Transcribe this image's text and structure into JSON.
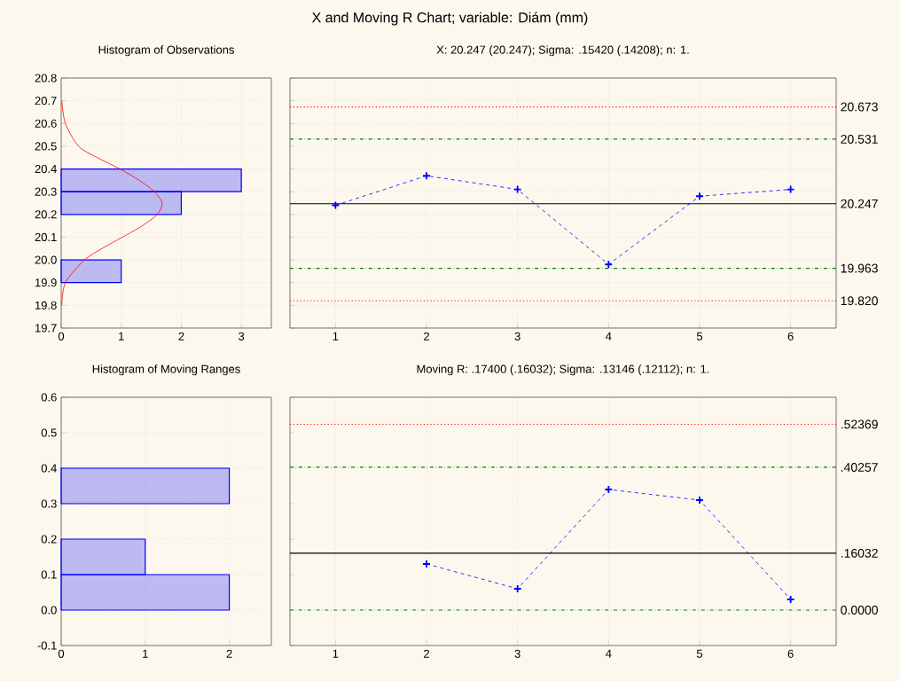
{
  "chart_data": [
    {
      "type": "other",
      "title": "X and Moving R Chart; variable:  Diám (mm)"
    },
    {
      "type": "histogram",
      "orientation": "horizontal",
      "title": "Histogram of Observations",
      "grid": true,
      "series": [
        {
          "type": "histogram",
          "color": "#0000ff",
          "bins": [
            19.9,
            20.0,
            20.1,
            20.2,
            20.3,
            20.4
          ],
          "values": [
            1,
            0,
            0,
            2,
            3
          ]
        },
        {
          "type": "line",
          "color": "#ff0000",
          "x": [
            19.8,
            19.9,
            20.0,
            20.05,
            20.1,
            20.15,
            20.2,
            20.25,
            20.3,
            20.35,
            20.4,
            20.45,
            20.5,
            20.6,
            20.7
          ],
          "values": [
            0.01,
            0.07,
            0.39,
            0.68,
            1.02,
            1.35,
            1.6,
            1.68,
            1.55,
            1.3,
            0.98,
            0.6,
            0.29,
            0.07,
            0.01
          ]
        }
      ],
      "xlim": [
        0,
        3.5
      ],
      "xticks": [
        0,
        1,
        2,
        3
      ],
      "ylim": [
        19.7,
        20.8
      ],
      "yticks": [
        19.7,
        19.8,
        19.9,
        {
          "value": 20.0,
          "label": "20.0"
        },
        20.1,
        20.2,
        20.3,
        20.4,
        20.5,
        20.6,
        20.7,
        20.8
      ]
    },
    {
      "type": "line",
      "title": "X: 20.247 (20.247); Sigma: .15420 (.14208); n: 1.",
      "grid": true,
      "marker": "cross",
      "line_style": "dashed",
      "color": "#0000ff",
      "x": [
        1,
        2,
        3,
        4,
        5,
        6
      ],
      "values": [
        20.24,
        20.37,
        20.31,
        19.98,
        20.28,
        20.31
      ],
      "xlim": [
        0.5,
        6.5
      ],
      "xticks": [
        1,
        2,
        3,
        4,
        5,
        6
      ],
      "ylim": [
        19.7,
        20.8
      ],
      "yticks": [
        {
          "value": 19.7,
          "label": null
        },
        {
          "value": 19.8,
          "label": null
        },
        {
          "value": 19.9,
          "label": null
        },
        {
          "value": 20.0,
          "label": null
        },
        {
          "value": 20.1,
          "label": null
        },
        {
          "value": 20.2,
          "label": null
        },
        {
          "value": 20.3,
          "label": null
        },
        {
          "value": 20.4,
          "label": null
        },
        {
          "value": 20.5,
          "label": null
        },
        {
          "value": 20.6,
          "label": null
        },
        {
          "value": 20.7,
          "label": null
        },
        {
          "value": 20.8,
          "label": null
        }
      ],
      "tick_labels": "x",
      "ref_lines": [
        {
          "axis": "y",
          "value": 20.673,
          "label": "20.673",
          "color": "#ff0000",
          "line_style": "dotted"
        },
        {
          "axis": "y",
          "value": 20.531,
          "label": "20.531",
          "color": "#008000",
          "line_style": "dashdot"
        },
        {
          "axis": "y",
          "value": 20.247,
          "label": "20.247",
          "color": "#000000",
          "line_style": "solid"
        },
        {
          "axis": "y",
          "value": 19.963,
          "label": "19.963",
          "color": "#008000",
          "line_style": "dashdot"
        },
        {
          "axis": "y",
          "value": 19.82,
          "label": "19.820",
          "color": "#ff0000",
          "line_style": "dotted"
        }
      ]
    },
    {
      "type": "histogram",
      "orientation": "horizontal",
      "title": "Histogram of Moving Ranges",
      "grid": true,
      "color": "#0000ff",
      "bins": [
        0,
        0.1,
        0.2,
        0.3,
        0.4
      ],
      "values": [
        2,
        1,
        0,
        2
      ],
      "xlim": [
        0,
        2.5
      ],
      "xticks": [
        0,
        1,
        2
      ],
      "ylim": [
        -0.1,
        0.6
      ],
      "yticks": [
        -0.1,
        {
          "value": 0,
          "label": "0.0"
        },
        0.1,
        0.2,
        0.3,
        0.4,
        0.5,
        0.6
      ]
    },
    {
      "type": "line",
      "title": "Moving R: .17400 (.16032); Sigma: .13146 (.12112); n: 1.",
      "grid": "x",
      "marker": "cross",
      "line_style": "dashed",
      "color": "#0000ff",
      "x": [
        2,
        3,
        4,
        5,
        6
      ],
      "values": [
        0.13,
        0.06,
        0.34,
        0.31,
        0.03
      ],
      "xlim": [
        0.5,
        6.5
      ],
      "xticks": [
        1,
        2,
        3,
        4,
        5,
        6
      ],
      "ylim": [
        -0.1,
        0.6
      ],
      "yticks": [
        {
          "value": -0.1,
          "label": null
        },
        {
          "value": 0,
          "label": null
        },
        {
          "value": 0.1,
          "label": null
        },
        {
          "value": 0.2,
          "label": null
        },
        {
          "value": 0.3,
          "label": null
        },
        {
          "value": 0.4,
          "label": null
        },
        {
          "value": 0.5,
          "label": null
        },
        {
          "value": 0.6,
          "label": null
        }
      ],
      "tick_labels": "x",
      "ref_lines": [
        {
          "axis": "y",
          "value": 0.52369,
          "label": ".52369",
          "color": "#ff0000",
          "line_style": "dotted"
        },
        {
          "axis": "y",
          "value": 0.40257,
          "label": ".40257",
          "color": "#008000",
          "line_style": "dashdot"
        },
        {
          "axis": "y",
          "value": 0.16032,
          "label": ".16032",
          "color": "#000000",
          "line_style": "solid"
        },
        {
          "axis": "y",
          "value": 0,
          "label": "0.0000",
          "color": "#008000",
          "line_style": "dashdot"
        }
      ]
    }
  ]
}
